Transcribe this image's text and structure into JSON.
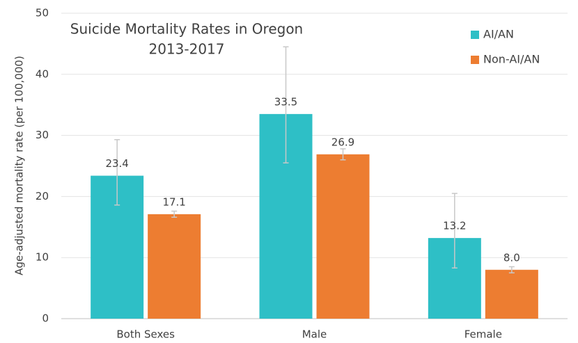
{
  "chart_data": {
    "type": "bar",
    "title": "Suicide Mortality Rates in Oregon",
    "subtitle": "2013-2017",
    "y_label": "Age-adjusted mortality  rate (per 100,000)",
    "categories": [
      "Both Sexes",
      "Male",
      "Female"
    ],
    "series": [
      {
        "name": "AI/AN",
        "color": "#2ebfc6",
        "values": [
          23.4,
          33.5,
          13.2
        ],
        "error_low": [
          18.6,
          25.5,
          8.3
        ],
        "error_high": [
          29.3,
          44.5,
          20.5
        ]
      },
      {
        "name": "Non-AI/AN",
        "color": "#ed7d31",
        "values": [
          17.1,
          26.9,
          8
        ],
        "value_labels": [
          "17.1",
          "26.9",
          "8.0"
        ],
        "error_low": [
          16.6,
          26.0,
          7.5
        ],
        "error_high": [
          17.6,
          27.8,
          8.5
        ]
      }
    ],
    "ylim": [
      0,
      50
    ],
    "yticks": [
      0,
      10,
      20,
      30,
      40,
      50
    ],
    "grid": true,
    "legend": "top-right"
  }
}
